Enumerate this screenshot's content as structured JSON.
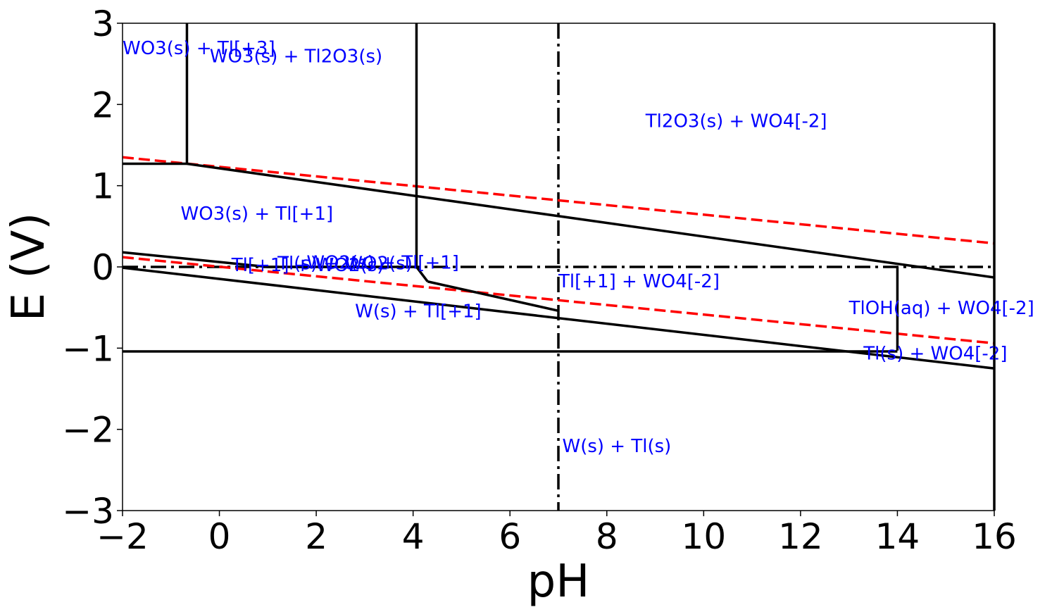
{
  "chart_data": {
    "type": "line",
    "title": "",
    "xlabel": "pH",
    "ylabel": "E (V)",
    "xlim": [
      -2,
      16
    ],
    "ylim": [
      -3,
      3
    ],
    "xticks": [
      -2,
      0,
      2,
      4,
      6,
      8,
      10,
      12,
      14,
      16
    ],
    "yticks": [
      -3,
      -2,
      -1,
      0,
      1,
      2,
      3
    ],
    "xtick_labels": [
      "−2",
      "0",
      "2",
      "4",
      "6",
      "8",
      "10",
      "12",
      "14",
      "16"
    ],
    "ytick_labels": [
      "−3",
      "−2",
      "−1",
      "0",
      "1",
      "2",
      "3"
    ],
    "grid": false,
    "label_color": "#0000ff",
    "boundary_color": "#000000",
    "water_line_color": "#ff0000",
    "boundaries": [
      {
        "id": "b1",
        "points": [
          [
            -0.67,
            3
          ],
          [
            -0.67,
            1.27
          ]
        ]
      },
      {
        "id": "b2",
        "points": [
          [
            -2,
            1.27
          ],
          [
            -0.67,
            1.27
          ]
        ]
      },
      {
        "id": "b3",
        "points": [
          [
            -0.67,
            1.27
          ],
          [
            16,
            -0.13
          ]
        ]
      },
      {
        "id": "b4",
        "points": [
          [
            4.07,
            3
          ],
          [
            4.07,
            0
          ]
        ]
      },
      {
        "id": "b5",
        "points": [
          [
            -2,
            0.18
          ],
          [
            1,
            0
          ]
        ]
      },
      {
        "id": "b6",
        "points": [
          [
            1,
            0
          ],
          [
            4.07,
            0
          ]
        ]
      },
      {
        "id": "b7",
        "points": [
          [
            4.07,
            0
          ],
          [
            4.3,
            -0.18
          ]
        ]
      },
      {
        "id": "b8",
        "points": [
          [
            4.3,
            -0.18
          ],
          [
            7,
            -0.54
          ]
        ]
      },
      {
        "id": "b9",
        "points": [
          [
            -2,
            -0.01
          ],
          [
            16,
            -1.25
          ]
        ]
      },
      {
        "id": "b10",
        "points": [
          [
            -2,
            -1.04
          ],
          [
            14,
            -1.04
          ]
        ]
      },
      {
        "id": "b11",
        "points": [
          [
            14,
            0
          ],
          [
            14,
            -1.03
          ]
        ]
      },
      {
        "id": "b12",
        "points": [
          [
            16,
            3
          ],
          [
            16,
            -3
          ]
        ]
      }
    ],
    "water_lines": [
      {
        "id": "oxygen",
        "points": [
          [
            -2,
            1.35
          ],
          [
            16,
            0.29
          ]
        ]
      },
      {
        "id": "hydrogen",
        "points": [
          [
            -2,
            0.12
          ],
          [
            16,
            -0.94
          ]
        ]
      }
    ],
    "reference_lines": [
      {
        "id": "neutral-ph",
        "orientation": "vertical",
        "value": 7
      },
      {
        "id": "zero-potential",
        "orientation": "horizontal",
        "value": 0
      }
    ],
    "region_labels": [
      {
        "text": "WO3(s) + Tl[+3]",
        "x": -2.0,
        "y": 2.62
      },
      {
        "text": "WO3(s) + Tl2O3(s)",
        "x": -0.2,
        "y": 2.52
      },
      {
        "text": "Tl2O3(s) + WO4[-2]",
        "x": 8.8,
        "y": 1.72
      },
      {
        "text": "WO3(s) + Tl[+1]",
        "x": -0.8,
        "y": 0.58
      },
      {
        "text": "Tl[+1] + WO2(s)",
        "x": 0.25,
        "y": -0.05
      },
      {
        "text": "Tl(s) + WO2(s)",
        "x": 1.2,
        "y": -0.03
      },
      {
        "text": "WO2(s) + Tl[+1]",
        "x": 1.8,
        "y": -0.02
      },
      {
        "text": "Tl[+1] + WO4[-2]",
        "x": 7.0,
        "y": -0.25
      },
      {
        "text": "W(s) + Tl[+1]",
        "x": 2.8,
        "y": -0.62
      },
      {
        "text": "TlOH(aq) + WO4[-2]",
        "x": 13.0,
        "y": -0.58
      },
      {
        "text": "Tl(s) + WO4[-2]",
        "x": 13.3,
        "y": -1.14
      },
      {
        "text": "W(s) + Tl(s)",
        "x": 7.08,
        "y": -2.28
      }
    ]
  }
}
